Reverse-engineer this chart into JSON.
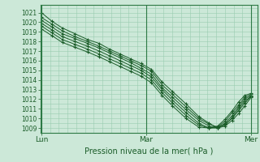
{
  "title": "",
  "xlabel": "Pression niveau de la mer( hPa )",
  "bg_color": "#cce8d8",
  "grid_color": "#99ccb0",
  "line_color": "#1a5c28",
  "marker_color": "#1a5c28",
  "ylim": [
    1008.5,
    1021.8
  ],
  "yticks": [
    1009,
    1010,
    1011,
    1012,
    1013,
    1014,
    1015,
    1016,
    1017,
    1018,
    1019,
    1020,
    1021
  ],
  "xlim": [
    -0.01,
    2.06
  ],
  "x_lun": 0.0,
  "x_mar": 1.0,
  "x_mer": 2.0,
  "lines": [
    [
      0.0,
      1021.0,
      0.1,
      1020.1,
      0.2,
      1019.4,
      0.32,
      1018.8,
      0.44,
      1018.2,
      0.55,
      1017.8,
      0.65,
      1017.2,
      0.75,
      1016.7,
      0.85,
      1016.2,
      0.95,
      1015.7,
      1.05,
      1015.1,
      1.15,
      1013.8,
      1.25,
      1012.8,
      1.38,
      1011.5,
      1.5,
      1010.2,
      1.6,
      1009.5,
      1.68,
      1009.0,
      1.75,
      1009.2,
      1.82,
      1009.8,
      1.88,
      1010.5,
      1.94,
      1011.3,
      2.0,
      1012.2
    ],
    [
      0.0,
      1020.5,
      0.1,
      1019.8,
      0.2,
      1019.1,
      0.32,
      1018.5,
      0.44,
      1018.0,
      0.55,
      1017.5,
      0.65,
      1017.0,
      0.75,
      1016.5,
      0.85,
      1016.0,
      0.95,
      1015.5,
      1.05,
      1014.9,
      1.15,
      1013.5,
      1.25,
      1012.5,
      1.38,
      1011.2,
      1.5,
      1010.0,
      1.6,
      1009.4,
      1.68,
      1009.1,
      1.75,
      1009.4,
      1.82,
      1010.0,
      1.88,
      1010.8,
      1.94,
      1011.6,
      2.0,
      1012.3
    ],
    [
      0.0,
      1020.2,
      0.1,
      1019.5,
      0.2,
      1018.8,
      0.32,
      1018.3,
      0.44,
      1017.8,
      0.55,
      1017.3,
      0.65,
      1016.8,
      0.75,
      1016.3,
      0.85,
      1015.8,
      0.95,
      1015.2,
      1.05,
      1014.6,
      1.15,
      1013.2,
      1.25,
      1012.2,
      1.38,
      1010.9,
      1.5,
      1009.8,
      1.6,
      1009.2,
      1.68,
      1009.0,
      1.75,
      1009.3,
      1.82,
      1010.1,
      1.88,
      1011.0,
      1.94,
      1011.8,
      2.0,
      1012.3
    ],
    [
      0.0,
      1019.9,
      0.1,
      1019.2,
      0.2,
      1018.5,
      0.32,
      1018.0,
      0.44,
      1017.5,
      0.55,
      1017.0,
      0.65,
      1016.5,
      0.75,
      1016.0,
      0.85,
      1015.5,
      0.95,
      1015.0,
      1.05,
      1014.3,
      1.15,
      1013.0,
      1.25,
      1011.9,
      1.38,
      1010.6,
      1.5,
      1009.5,
      1.6,
      1009.0,
      1.68,
      1009.0,
      1.75,
      1009.5,
      1.82,
      1010.3,
      1.88,
      1011.2,
      1.94,
      1012.0,
      2.0,
      1012.4
    ],
    [
      0.0,
      1019.6,
      0.1,
      1018.9,
      0.2,
      1018.2,
      0.32,
      1017.7,
      0.44,
      1017.2,
      0.55,
      1016.7,
      0.65,
      1016.2,
      0.75,
      1015.7,
      0.85,
      1015.2,
      0.95,
      1014.7,
      1.05,
      1014.0,
      1.15,
      1012.7,
      1.25,
      1011.6,
      1.38,
      1010.3,
      1.5,
      1009.3,
      1.6,
      1009.0,
      1.68,
      1009.1,
      1.75,
      1009.7,
      1.82,
      1010.6,
      1.88,
      1011.4,
      1.94,
      1012.2,
      2.0,
      1012.5
    ],
    [
      0.0,
      1019.3,
      0.1,
      1018.6,
      0.2,
      1017.9,
      0.32,
      1017.4,
      0.44,
      1016.9,
      0.55,
      1016.4,
      0.65,
      1015.9,
      0.75,
      1015.4,
      0.85,
      1014.9,
      0.95,
      1014.4,
      1.05,
      1013.7,
      1.15,
      1012.4,
      1.25,
      1011.3,
      1.38,
      1010.0,
      1.5,
      1009.1,
      1.6,
      1009.0,
      1.68,
      1009.2,
      1.75,
      1009.9,
      1.82,
      1010.8,
      1.88,
      1011.7,
      1.94,
      1012.4,
      2.0,
      1012.6
    ]
  ],
  "vline_color": "#2d7a45",
  "spine_color": "#2d7a45",
  "xlabel_fontsize": 7,
  "ytick_fontsize": 5.5,
  "xtick_fontsize": 6.5
}
